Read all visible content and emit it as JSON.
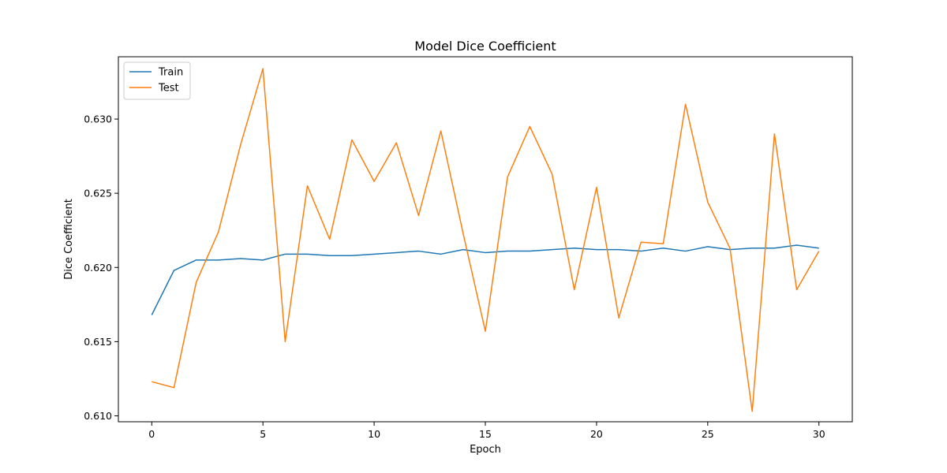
{
  "chart_data": {
    "type": "line",
    "title": "Model Dice Coefficient",
    "xlabel": "Epoch",
    "ylabel": "Dice Coefficient",
    "xlim": [
      -1.5,
      31.5
    ],
    "ylim": [
      0.6096,
      0.6342
    ],
    "xticks": [
      0,
      5,
      10,
      15,
      20,
      25,
      30
    ],
    "yticks": [
      0.61,
      0.615,
      0.62,
      0.625,
      0.63
    ],
    "xtick_labels": [
      "0",
      "5",
      "10",
      "15",
      "20",
      "25",
      "30"
    ],
    "ytick_labels": [
      "0.610",
      "0.615",
      "0.620",
      "0.625",
      "0.630"
    ],
    "grid": false,
    "legend_position": "top-left",
    "x": [
      0,
      1,
      2,
      3,
      4,
      5,
      6,
      7,
      8,
      9,
      10,
      11,
      12,
      13,
      14,
      15,
      16,
      17,
      18,
      19,
      20,
      21,
      22,
      23,
      24,
      25,
      26,
      27,
      28,
      29,
      30
    ],
    "series": [
      {
        "name": "Train",
        "color": "#1f77b4",
        "values": [
          0.6168,
          0.6198,
          0.6205,
          0.6205,
          0.6206,
          0.6205,
          0.6209,
          0.6209,
          0.6208,
          0.6208,
          0.6209,
          0.621,
          0.6211,
          0.6209,
          0.6212,
          0.621,
          0.6211,
          0.6211,
          0.6212,
          0.6213,
          0.6212,
          0.6212,
          0.6211,
          0.6213,
          0.6211,
          0.6214,
          0.6212,
          0.6213,
          0.6213,
          0.6215,
          0.6213
        ]
      },
      {
        "name": "Test",
        "color": "#ff7f0e",
        "values": [
          0.6123,
          0.6119,
          0.619,
          0.6224,
          0.6283,
          0.6334,
          0.615,
          0.6255,
          0.6219,
          0.6286,
          0.6258,
          0.6284,
          0.6235,
          0.6292,
          0.6223,
          0.6157,
          0.6261,
          0.6295,
          0.6263,
          0.6185,
          0.6254,
          0.6166,
          0.6217,
          0.6216,
          0.631,
          0.6244,
          0.6213,
          0.6103,
          0.629,
          0.6185,
          0.6211
        ]
      }
    ]
  }
}
